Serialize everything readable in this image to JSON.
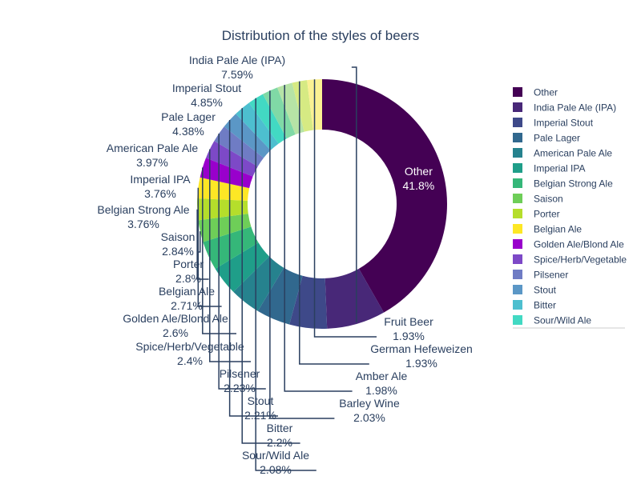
{
  "chart_data": {
    "type": "pie",
    "hole": true,
    "title": "Distribution of the styles of beers",
    "labels": [
      "Other",
      "India Pale Ale (IPA)",
      "Imperial Stout",
      "Pale Lager",
      "American Pale Ale",
      "Imperial IPA",
      "Belgian Strong Ale",
      "Saison",
      "Porter",
      "Belgian Ale",
      "Golden Ale/Blond Ale",
      "Spice/Herb/Vegetable",
      "Pilsener",
      "Stout",
      "Bitter",
      "Sour/Wild Ale",
      "Barley Wine",
      "Amber Ale",
      "German Hefeweizen",
      "Fruit Beer"
    ],
    "values": [
      41.8,
      7.59,
      4.85,
      4.38,
      3.97,
      3.76,
      3.76,
      2.84,
      2.8,
      2.71,
      2.6,
      2.4,
      2.23,
      2.21,
      2.2,
      2.08,
      2.03,
      1.98,
      1.93,
      1.93
    ],
    "text_labels": [
      "41.8%",
      "7.59%",
      "4.85%",
      "4.38%",
      "3.97%",
      "3.76%",
      "3.76%",
      "2.84%",
      "2.8%",
      "2.71%",
      "2.6%",
      "2.4%",
      "2.23%",
      "2.21%",
      "2.2%",
      "2.08%",
      "2.03%",
      "1.98%",
      "1.93%",
      "1.93%"
    ],
    "colors": [
      "#440154",
      "#482878",
      "#3e4989",
      "#31688e",
      "#26828e",
      "#1f9e89",
      "#35b779",
      "#6ece58",
      "#b5de2b",
      "#fde725",
      "#9900cc",
      "#7d49c7",
      "#6f7cc4",
      "#5b97c6",
      "#4dbfcf",
      "#42d9c3",
      "#80d9a6",
      "#b6e3a6",
      "#d6ea83",
      "#fbf193"
    ],
    "legend": {
      "placement": "right",
      "items": [
        "Other",
        "India Pale Ale (IPA)",
        "Imperial Stout",
        "Pale Lager",
        "American Pale Ale",
        "Imperial IPA",
        "Belgian Strong Ale",
        "Saison",
        "Porter",
        "Belgian Ale",
        "Golden Ale/Blond Ale",
        "Spice/Herb/Vegetable",
        "Pilsener",
        "Stout",
        "Bitter",
        "Sour/Wild Ale"
      ]
    },
    "text_color": "#2a3f5f",
    "inside_text_color": "#ffffff"
  }
}
